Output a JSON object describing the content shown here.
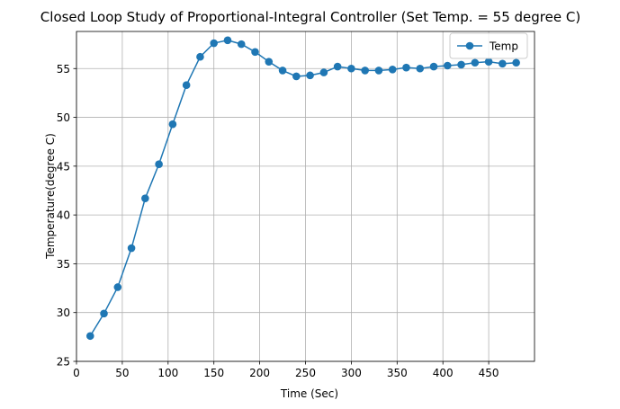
{
  "chart_data": {
    "type": "line",
    "title": "Closed Loop Study of Proportional-Integral  Controller (Set Temp. = 55 degree C)",
    "xlabel": "Time (Sec)",
    "ylabel": "Temperature(degree C)",
    "xlim": [
      0,
      500
    ],
    "ylim": [
      25,
      58.8
    ],
    "xticks": [
      0,
      50,
      100,
      150,
      200,
      250,
      300,
      350,
      400,
      450
    ],
    "yticks": [
      25,
      30,
      35,
      40,
      45,
      50,
      55
    ],
    "grid": true,
    "legend_position": "top-right",
    "series": [
      {
        "name": "Temp",
        "color": "#1f77b4",
        "marker": "circle",
        "x": [
          15,
          30,
          45,
          60,
          75,
          90,
          105,
          120,
          135,
          150,
          165,
          180,
          195,
          210,
          225,
          240,
          255,
          270,
          285,
          300,
          315,
          330,
          345,
          360,
          375,
          390,
          405,
          420,
          435,
          450,
          465,
          480
        ],
        "y": [
          27.6,
          29.9,
          32.6,
          36.6,
          41.7,
          45.2,
          49.3,
          53.3,
          56.2,
          57.6,
          57.9,
          57.5,
          56.7,
          55.7,
          54.8,
          54.2,
          54.3,
          54.6,
          55.2,
          55.0,
          54.8,
          54.8,
          54.9,
          55.1,
          55.0,
          55.2,
          55.3,
          55.4,
          55.6,
          55.7,
          55.5,
          55.6
        ]
      }
    ]
  }
}
